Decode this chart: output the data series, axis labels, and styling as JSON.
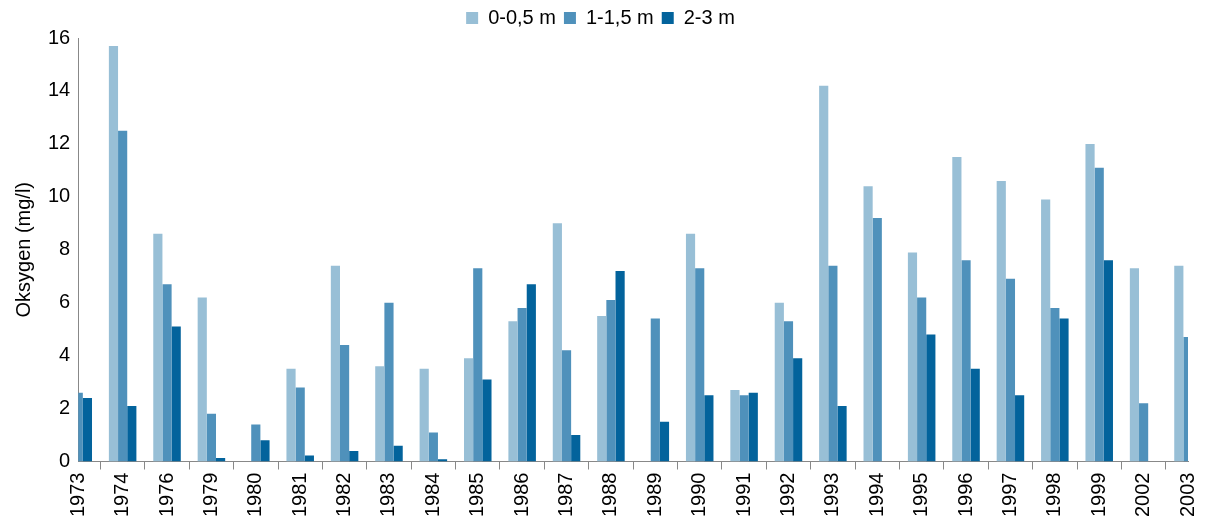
{
  "chart_data": {
    "type": "bar",
    "ylabel": "Oksygen (mg/l)",
    "categories": [
      "1973",
      "1974",
      "1976",
      "1979",
      "1980",
      "1981",
      "1982",
      "1983",
      "1984",
      "1985",
      "1986",
      "1987",
      "1988",
      "1989",
      "1990",
      "1991",
      "1992",
      "1993",
      "1994",
      "1995",
      "1996",
      "1997",
      "1998",
      "1999",
      "2002",
      "2003"
    ],
    "series": [
      {
        "name": "0-0,5 m",
        "color": "#98bfd6",
        "values": [
          null,
          15.7,
          8.6,
          6.2,
          null,
          3.5,
          7.4,
          3.6,
          3.5,
          3.9,
          5.3,
          9.0,
          5.5,
          null,
          8.6,
          2.7,
          6.0,
          14.2,
          10.4,
          7.9,
          11.5,
          10.6,
          9.9,
          12.0,
          7.3,
          7.4
        ]
      },
      {
        "name": "1-1,5 m",
        "color": "#4f91bb",
        "values": [
          2.6,
          12.5,
          6.7,
          1.8,
          1.4,
          2.8,
          4.4,
          6.0,
          1.1,
          7.3,
          5.8,
          4.2,
          6.1,
          5.4,
          7.3,
          2.5,
          5.3,
          7.4,
          9.2,
          6.2,
          7.6,
          6.9,
          5.8,
          11.1,
          2.2,
          4.7
        ]
      },
      {
        "name": "2-3 m",
        "color": "#03639c",
        "values": [
          2.4,
          2.1,
          5.1,
          0.13,
          0.8,
          0.23,
          0.4,
          0.6,
          0.09,
          3.1,
          6.7,
          1.0,
          7.2,
          1.5,
          2.5,
          2.6,
          3.9,
          2.1,
          null,
          4.8,
          3.5,
          2.5,
          5.4,
          7.6,
          null,
          null
        ]
      }
    ],
    "ylim": [
      0,
      16
    ],
    "yticks": [
      0,
      2,
      4,
      6,
      8,
      10,
      12,
      14,
      16
    ],
    "grid": false,
    "legend": "top"
  }
}
